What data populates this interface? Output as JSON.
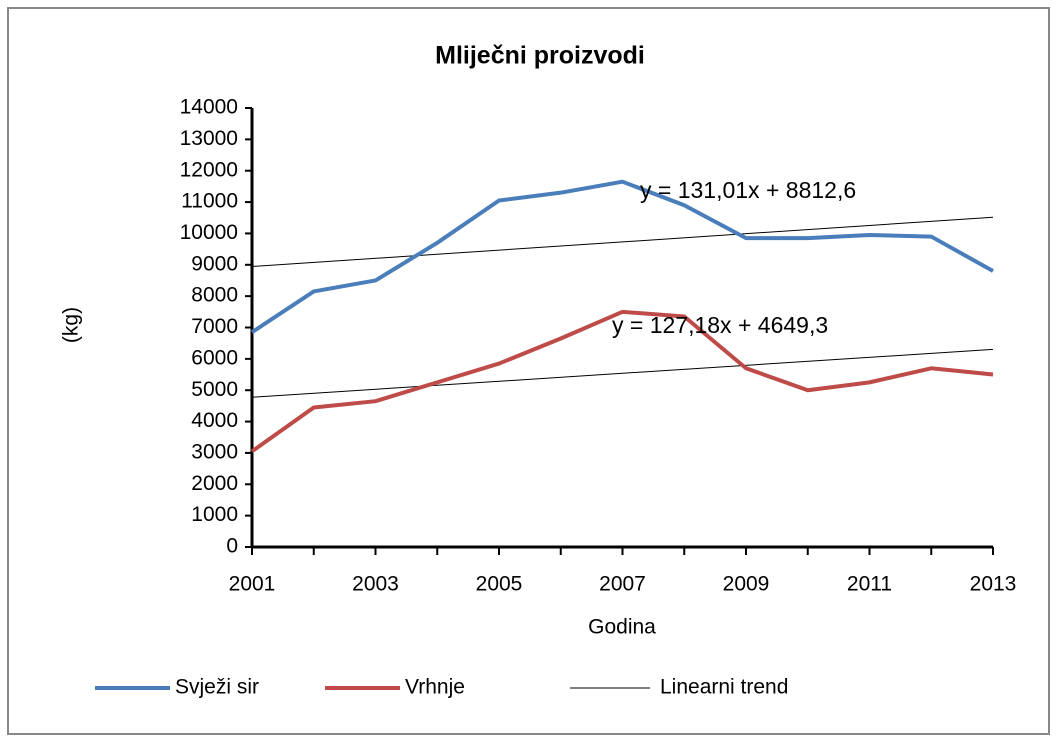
{
  "chart_data": {
    "type": "line",
    "title": "Mliječni proizvodi",
    "x_label": "Godina",
    "y_label": "(kg)",
    "x": [
      2001,
      2002,
      2003,
      2004,
      2005,
      2006,
      2007,
      2008,
      2009,
      2010,
      2011,
      2012,
      2013
    ],
    "series": [
      {
        "name": "Svježi sir",
        "color": "#4a7ebb",
        "values": [
          6850,
          8150,
          8500,
          9700,
          11050,
          11300,
          11650,
          10900,
          9850,
          9850,
          9950,
          9900,
          8800
        ]
      },
      {
        "name": "Vrhnje",
        "color": "#be4b48",
        "values": [
          3050,
          4450,
          4650,
          5250,
          5850,
          6650,
          7500,
          7350,
          5700,
          5000,
          5250,
          5700,
          5500
        ]
      }
    ],
    "trend_name": "Linearni trend",
    "trendlines": [
      {
        "label": "y = 131,01x + 8812,6",
        "slope": 131.01,
        "intercept": 8812.6
      },
      {
        "label": "y = 127,18x + 4649,3",
        "slope": 127.18,
        "intercept": 4649.3
      }
    ],
    "xlim": [
      2001,
      2013
    ],
    "xticks": [
      2001,
      2003,
      2005,
      2007,
      2009,
      2011,
      2013
    ],
    "ylim": [
      0,
      14000
    ],
    "yticks": [
      0,
      1000,
      2000,
      3000,
      4000,
      5000,
      6000,
      7000,
      8000,
      9000,
      10000,
      11000,
      12000,
      13000,
      14000
    ],
    "legend": "bottom"
  }
}
